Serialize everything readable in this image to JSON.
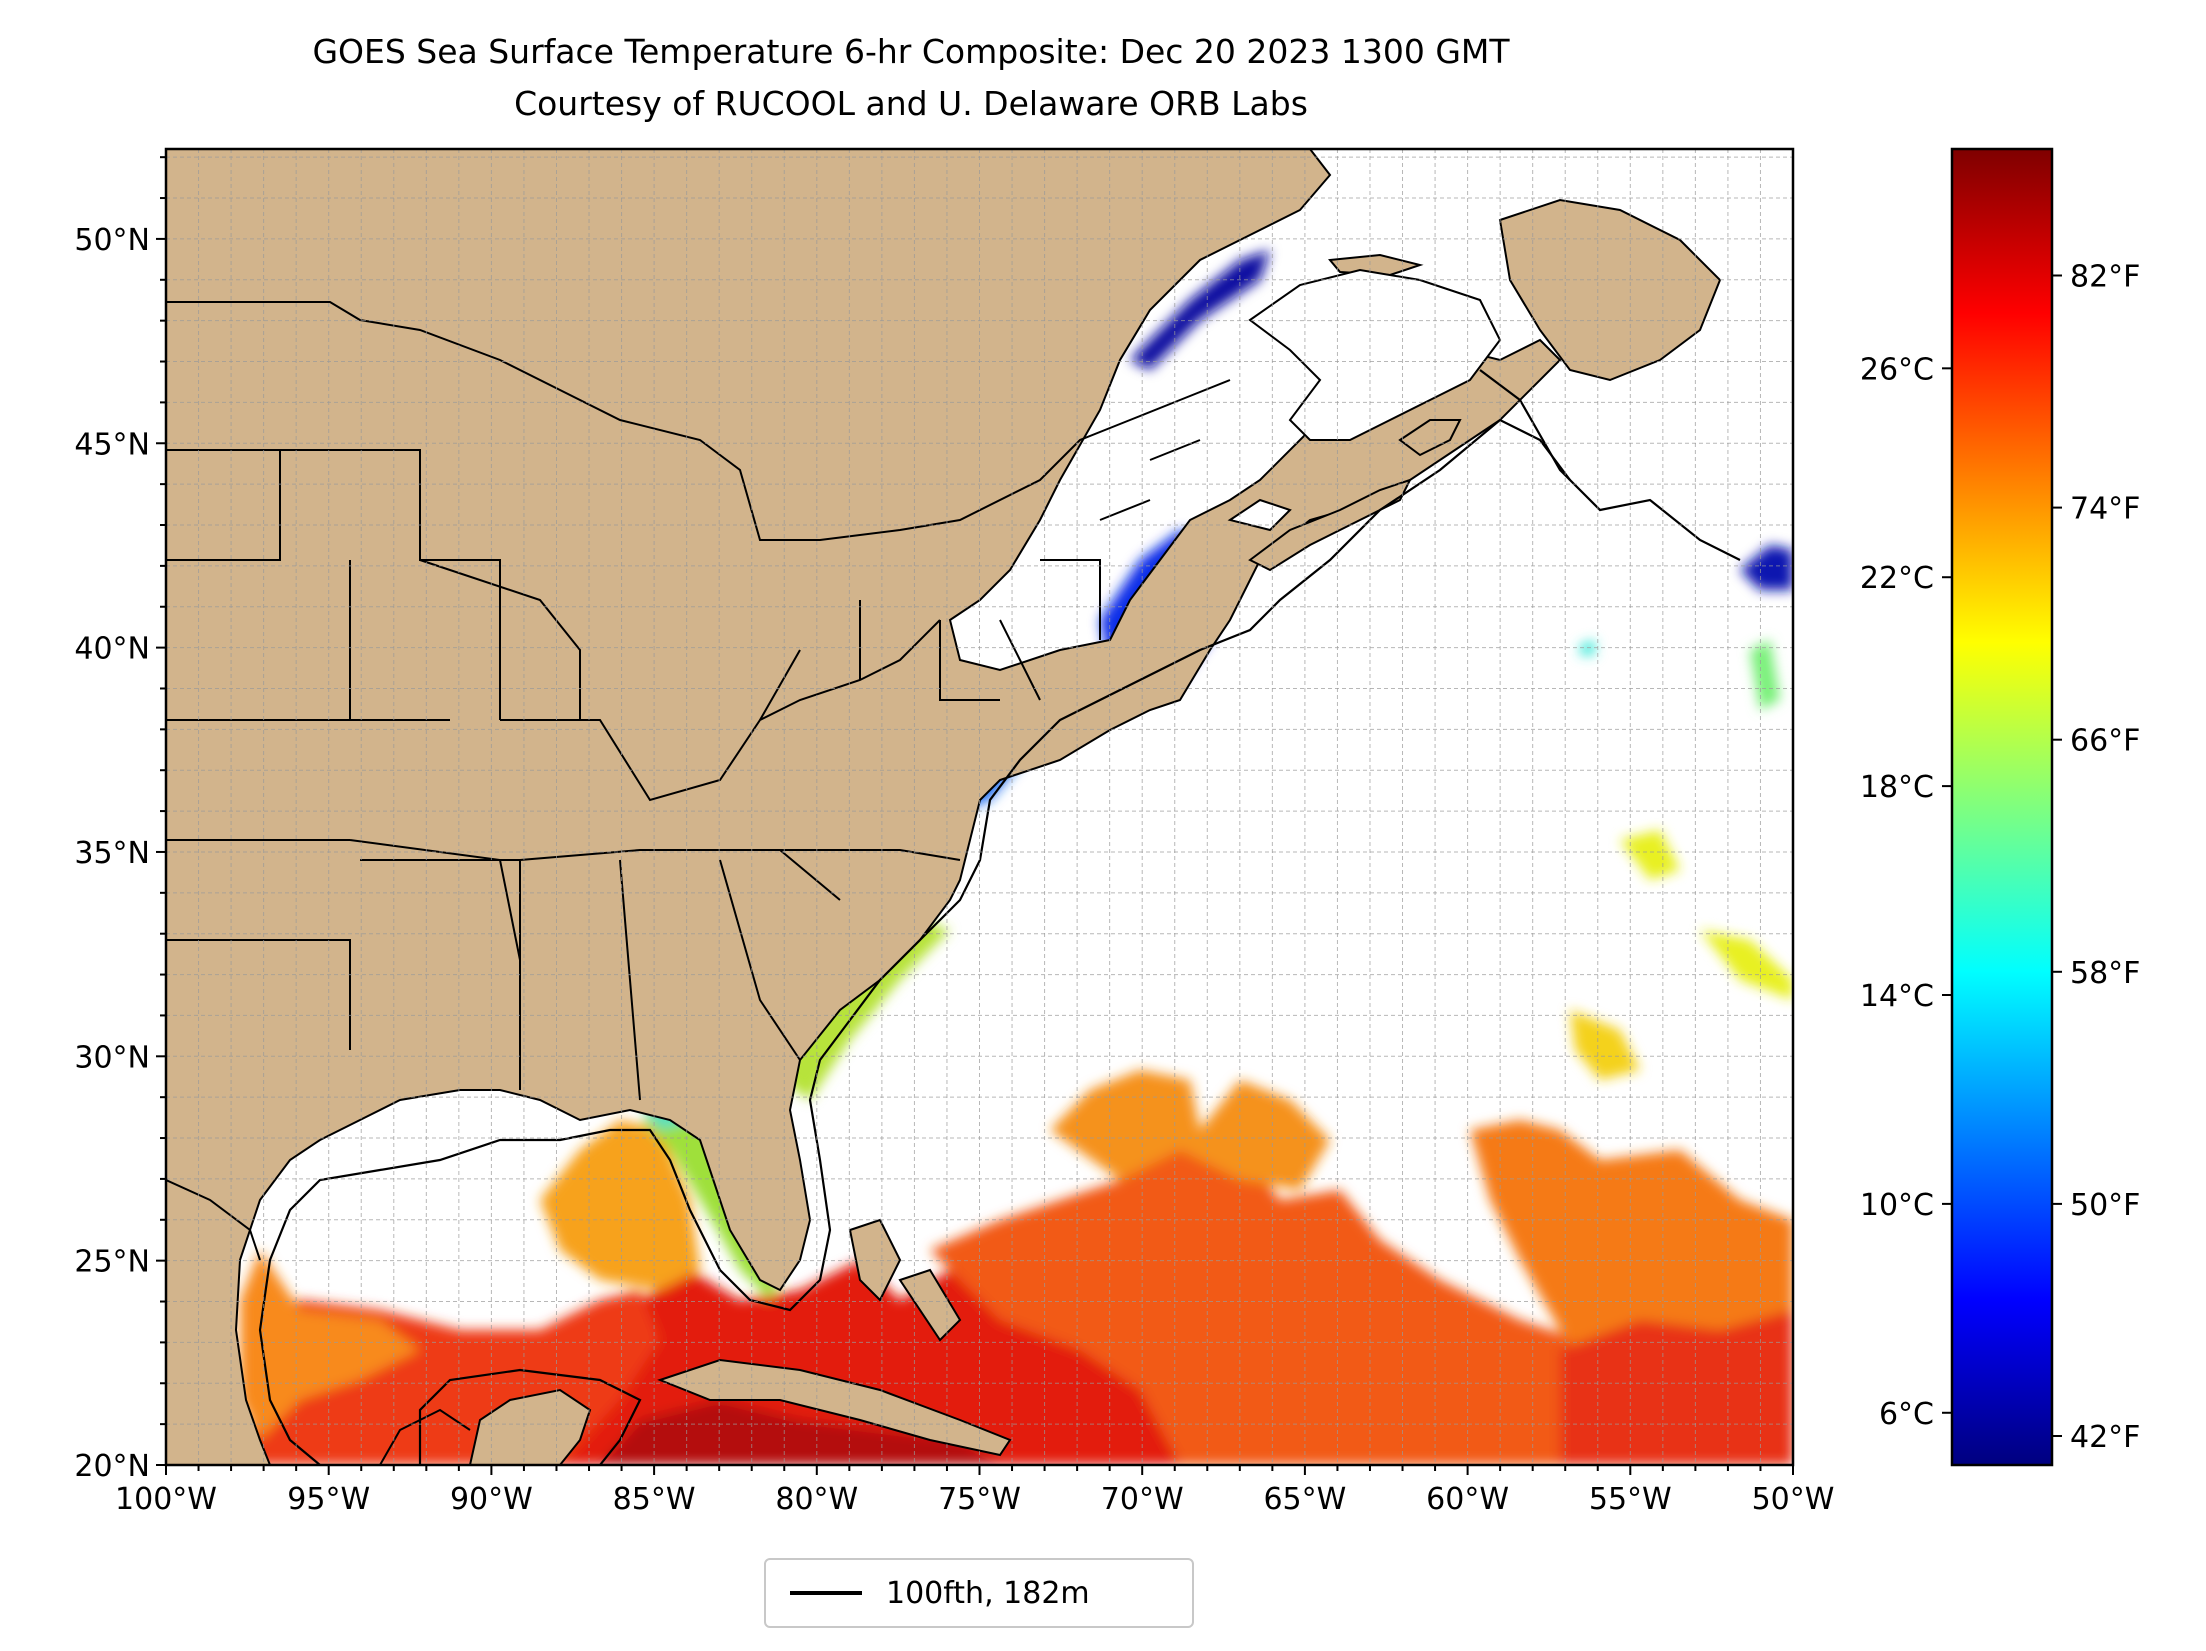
{
  "title": {
    "line1": "GOES Sea Surface Temperature 6-hr Composite: Dec 20 2023 1300 GMT",
    "line2": "Courtesy of RUCOOL and U. Delaware ORB Labs"
  },
  "map": {
    "lon_range": [
      -100,
      -50
    ],
    "lat_range": [
      20,
      52.2
    ],
    "lon_ticks": [
      {
        "value": -100,
        "label": "100°W"
      },
      {
        "value": -95,
        "label": "95°W"
      },
      {
        "value": -90,
        "label": "90°W"
      },
      {
        "value": -85,
        "label": "85°W"
      },
      {
        "value": -80,
        "label": "80°W"
      },
      {
        "value": -75,
        "label": "75°W"
      },
      {
        "value": -70,
        "label": "70°W"
      },
      {
        "value": -65,
        "label": "65°W"
      },
      {
        "value": -60,
        "label": "60°W"
      },
      {
        "value": -55,
        "label": "55°W"
      },
      {
        "value": -50,
        "label": "50°W"
      }
    ],
    "lat_ticks": [
      {
        "value": 20,
        "label": "20°N"
      },
      {
        "value": 25,
        "label": "25°N"
      },
      {
        "value": 30,
        "label": "30°N"
      },
      {
        "value": 35,
        "label": "35°N"
      },
      {
        "value": 40,
        "label": "40°N"
      },
      {
        "value": 45,
        "label": "45°N"
      },
      {
        "value": 50,
        "label": "50°N"
      }
    ],
    "grid": true,
    "grid_spacing_deg": 1,
    "land_color": "#d2b48c",
    "ocean_color": "#ffffff",
    "lake_no_data_color": "#9ab8e0"
  },
  "colorbar": {
    "colormap": "jet",
    "range_c": [
      5.0,
      30.2
    ],
    "celsius_ticks": [
      {
        "value": 6,
        "label": "6°C"
      },
      {
        "value": 10,
        "label": "10°C"
      },
      {
        "value": 14,
        "label": "14°C"
      },
      {
        "value": 18,
        "label": "18°C"
      },
      {
        "value": 22,
        "label": "22°C"
      },
      {
        "value": 26,
        "label": "26°C"
      }
    ],
    "fahrenheit_ticks": [
      {
        "value": 42,
        "label": "42°F"
      },
      {
        "value": 50,
        "label": "50°F"
      },
      {
        "value": 58,
        "label": "58°F"
      },
      {
        "value": 66,
        "label": "66°F"
      },
      {
        "value": 74,
        "label": "74°F"
      },
      {
        "value": 82,
        "label": "82°F"
      }
    ],
    "stops": [
      "#00007f",
      "#0000ff",
      "#007fff",
      "#00ffff",
      "#7fff7f",
      "#ffff00",
      "#ff7f00",
      "#ff0000",
      "#7f0000"
    ]
  },
  "legend": {
    "entries": [
      {
        "label": "100fth, 182m",
        "color": "#000000"
      }
    ]
  }
}
